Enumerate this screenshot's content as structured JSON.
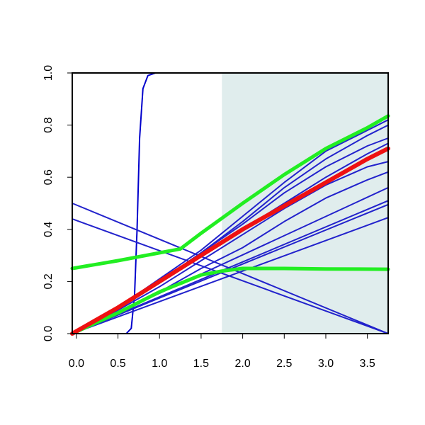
{
  "chart_data": {
    "type": "line",
    "title": "",
    "xlabel": "",
    "ylabel": "",
    "xlim": [
      -0.05,
      3.75
    ],
    "ylim": [
      0,
      1
    ],
    "grid": false,
    "legend": "none",
    "shaded_region": {
      "x_from": 1.75,
      "x_to": 3.75,
      "color": "#e0eded"
    },
    "x_ticks": [
      {
        "value": 0.0,
        "label": "0.0"
      },
      {
        "value": 0.5,
        "label": "0.5"
      },
      {
        "value": 1.0,
        "label": "1.0"
      },
      {
        "value": 1.5,
        "label": "1.5"
      },
      {
        "value": 2.0,
        "label": "2.0"
      },
      {
        "value": 2.5,
        "label": "2.5"
      },
      {
        "value": 3.0,
        "label": "3.0"
      },
      {
        "value": 3.5,
        "label": "3.5"
      }
    ],
    "y_ticks": [
      {
        "value": 0.0,
        "label": "0.0"
      },
      {
        "value": 0.2,
        "label": "0.2"
      },
      {
        "value": 0.4,
        "label": "0.4"
      },
      {
        "value": 0.6,
        "label": "0.6"
      },
      {
        "value": 0.8,
        "label": "0.8"
      },
      {
        "value": 1.0,
        "label": "1.0"
      }
    ],
    "series": [
      {
        "color": "#0000cc",
        "width": 2,
        "points": [
          [
            0.0,
            0.0
          ],
          [
            0.6,
            0.0
          ],
          [
            0.66,
            0.02
          ],
          [
            0.7,
            0.15
          ],
          [
            0.73,
            0.4
          ],
          [
            0.76,
            0.75
          ],
          [
            0.8,
            0.94
          ],
          [
            0.86,
            0.99
          ],
          [
            0.95,
            1.0
          ],
          [
            3.75,
            1.0
          ]
        ]
      },
      {
        "color": "#2222cc",
        "width": 2,
        "points": [
          [
            -0.05,
            0.5
          ],
          [
            3.75,
            0.0
          ]
        ]
      },
      {
        "color": "#2222cc",
        "width": 2,
        "points": [
          [
            -0.05,
            0.44
          ],
          [
            3.75,
            0.0
          ]
        ]
      },
      {
        "color": "#2222cc",
        "width": 2,
        "points": [
          [
            -0.05,
            0.0
          ],
          [
            0.5,
            0.1
          ],
          [
            1.0,
            0.2
          ],
          [
            1.5,
            0.3
          ],
          [
            2.0,
            0.4
          ],
          [
            2.5,
            0.5
          ],
          [
            3.0,
            0.6
          ],
          [
            3.5,
            0.69
          ],
          [
            3.75,
            0.73
          ]
        ]
      },
      {
        "color": "#2222cc",
        "width": 2,
        "points": [
          [
            -0.05,
            0.0
          ],
          [
            0.5,
            0.1
          ],
          [
            1.0,
            0.2
          ],
          [
            1.5,
            0.31
          ],
          [
            2.0,
            0.43
          ],
          [
            2.5,
            0.56
          ],
          [
            3.0,
            0.67
          ],
          [
            3.5,
            0.76
          ],
          [
            3.75,
            0.8
          ]
        ]
      },
      {
        "color": "#2222cc",
        "width": 2,
        "points": [
          [
            -0.05,
            0.0
          ],
          [
            0.5,
            0.1
          ],
          [
            1.0,
            0.21
          ],
          [
            1.5,
            0.32
          ],
          [
            2.0,
            0.45
          ],
          [
            2.5,
            0.58
          ],
          [
            3.0,
            0.7
          ],
          [
            3.5,
            0.78
          ],
          [
            3.75,
            0.82
          ]
        ]
      },
      {
        "color": "#2222cc",
        "width": 2,
        "points": [
          [
            -0.05,
            0.0
          ],
          [
            0.5,
            0.09
          ],
          [
            1.0,
            0.18
          ],
          [
            1.5,
            0.28
          ],
          [
            2.0,
            0.38
          ],
          [
            2.5,
            0.48
          ],
          [
            3.0,
            0.57
          ],
          [
            3.5,
            0.64
          ],
          [
            3.75,
            0.66
          ]
        ]
      },
      {
        "color": "#2222cc",
        "width": 2,
        "points": [
          [
            -0.05,
            0.0
          ],
          [
            0.5,
            0.08
          ],
          [
            1.0,
            0.16
          ],
          [
            1.5,
            0.25
          ],
          [
            2.0,
            0.33
          ],
          [
            2.5,
            0.43
          ],
          [
            3.0,
            0.52
          ],
          [
            3.5,
            0.59
          ],
          [
            3.75,
            0.62
          ]
        ]
      },
      {
        "color": "#2222cc",
        "width": 2,
        "points": [
          [
            -0.05,
            0.0
          ],
          [
            0.5,
            0.1
          ],
          [
            1.0,
            0.2
          ],
          [
            1.5,
            0.31
          ],
          [
            2.0,
            0.42
          ],
          [
            2.5,
            0.54
          ],
          [
            3.0,
            0.64
          ],
          [
            3.5,
            0.72
          ],
          [
            3.75,
            0.75
          ]
        ]
      },
      {
        "color": "#2222cc",
        "width": 2,
        "points": [
          [
            -0.05,
            0.0
          ],
          [
            3.75,
            0.56
          ]
        ]
      },
      {
        "color": "#2222cc",
        "width": 2,
        "points": [
          [
            -0.05,
            0.0
          ],
          [
            3.75,
            0.51
          ]
        ]
      },
      {
        "color": "#2222cc",
        "width": 2,
        "points": [
          [
            -0.05,
            0.0
          ],
          [
            3.75,
            0.495
          ]
        ]
      },
      {
        "color": "#2222cc",
        "width": 2,
        "points": [
          [
            -0.05,
            0.0
          ],
          [
            3.75,
            0.445
          ]
        ]
      },
      {
        "color": "#22ee22",
        "width": 5,
        "points": [
          [
            -0.05,
            0.25
          ],
          [
            0.5,
            0.28
          ],
          [
            1.0,
            0.31
          ],
          [
            1.25,
            0.325
          ],
          [
            1.5,
            0.385
          ],
          [
            2.0,
            0.5
          ],
          [
            2.5,
            0.61
          ],
          [
            3.0,
            0.71
          ],
          [
            3.5,
            0.79
          ],
          [
            3.75,
            0.835
          ]
        ]
      },
      {
        "color": "#22ee22",
        "width": 5,
        "points": [
          [
            -0.05,
            0.0
          ],
          [
            0.5,
            0.08
          ],
          [
            1.0,
            0.16
          ],
          [
            1.5,
            0.225
          ],
          [
            1.75,
            0.24
          ],
          [
            2.0,
            0.25
          ],
          [
            2.5,
            0.25
          ],
          [
            3.0,
            0.248
          ],
          [
            3.75,
            0.247
          ]
        ]
      },
      {
        "color": "#ee1111",
        "width": 6,
        "points": [
          [
            -0.05,
            0.0
          ],
          [
            0.5,
            0.1
          ],
          [
            1.0,
            0.2
          ],
          [
            1.5,
            0.3
          ],
          [
            2.0,
            0.4
          ],
          [
            2.5,
            0.49
          ],
          [
            3.0,
            0.58
          ],
          [
            3.5,
            0.67
          ],
          [
            3.75,
            0.71
          ]
        ]
      }
    ]
  }
}
